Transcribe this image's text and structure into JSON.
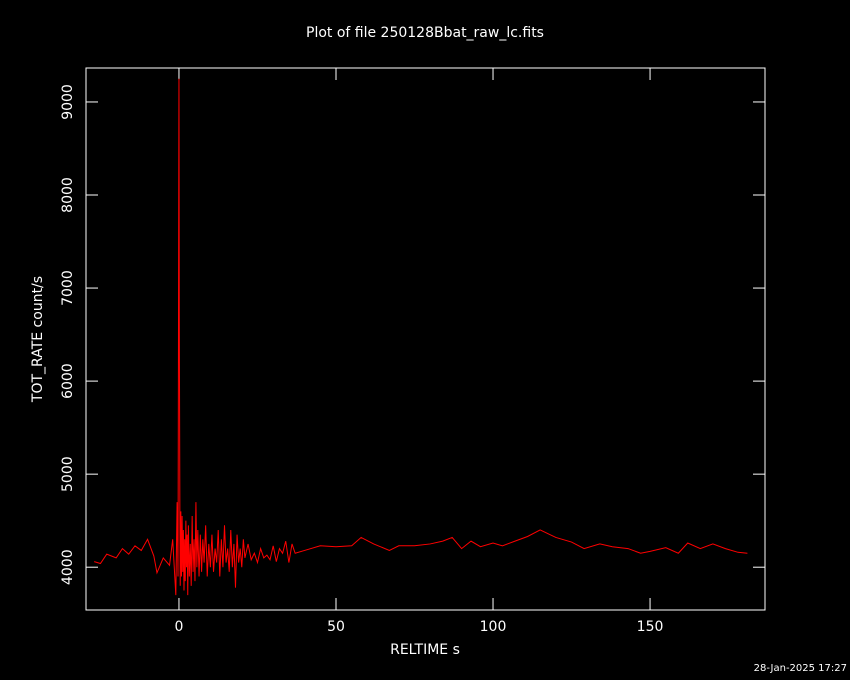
{
  "chart_data": {
    "type": "line",
    "title": "Plot of file 250128Bbat_raw_lc.fits",
    "x_label": "RELTIME  s",
    "y_label": "TOT_RATE  count/s",
    "timestamp": "28-Jan-2025 17:27",
    "background": "#000000",
    "axis_color": "#ffffff",
    "xlim": [
      -29.6,
      186.6
    ],
    "ylim": [
      3540,
      9365
    ],
    "xticks": [
      0,
      50,
      100,
      150
    ],
    "yticks": [
      4000,
      5000,
      6000,
      7000,
      8000,
      9000
    ],
    "x": [
      -27,
      -25,
      -23,
      -20,
      -18,
      -16,
      -14,
      -12,
      -10,
      -8,
      -7,
      -5,
      -3,
      -2,
      -1,
      -0.6,
      -0.3,
      0,
      0.1,
      0.2,
      0.3,
      0.4,
      0.6,
      0.8,
      1.0,
      1.2,
      1.4,
      1.6,
      1.8,
      2.0,
      2.2,
      2.4,
      2.6,
      2.8,
      3.0,
      3.3,
      3.6,
      3.9,
      4.2,
      4.5,
      4.8,
      5.1,
      5.4,
      5.7,
      6.0,
      6.4,
      6.8,
      7.2,
      7.6,
      8.0,
      8.5,
      9.0,
      9.5,
      10,
      10.5,
      11,
      11.5,
      12,
      12.5,
      13,
      13.5,
      14,
      14.5,
      15,
      15.5,
      16,
      16.5,
      17,
      17.5,
      18,
      18.5,
      19,
      19.5,
      20,
      20.5,
      21,
      22,
      23,
      24,
      25,
      26,
      27,
      28,
      29,
      30,
      31,
      32,
      33,
      34,
      35,
      36,
      37,
      40,
      45,
      50,
      55,
      58,
      62,
      67,
      70,
      75,
      80,
      84,
      87,
      90,
      93,
      96,
      100,
      103,
      107,
      111,
      115,
      120,
      125,
      129,
      134,
      138,
      143,
      147,
      150,
      155,
      159,
      162,
      166,
      170,
      174,
      178,
      181
    ],
    "series": [
      {
        "color": "#ff0000",
        "values": [
          4060,
          4040,
          4140,
          4100,
          4200,
          4140,
          4230,
          4180,
          4300,
          4120,
          3940,
          4100,
          4020,
          4300,
          3700,
          4700,
          3900,
          9250,
          6750,
          5650,
          4500,
          3800,
          4600,
          3900,
          4550,
          3950,
          4400,
          3750,
          4300,
          3850,
          4500,
          4000,
          4350,
          3700,
          4450,
          3900,
          4250,
          3800,
          4550,
          3950,
          4300,
          3850,
          4700,
          4000,
          4400,
          3900,
          4350,
          3950,
          4300,
          4050,
          4450,
          3900,
          4250,
          4000,
          4350,
          3950,
          4200,
          4050,
          4400,
          3900,
          4300,
          4000,
          4450,
          4050,
          4200,
          3950,
          4400,
          4000,
          4250,
          3780,
          4350,
          4050,
          4200,
          4000,
          4300,
          4100,
          4250,
          4080,
          4150,
          4050,
          4200,
          4100,
          4130,
          4080,
          4230,
          4060,
          4200,
          4150,
          4280,
          4050,
          4250,
          4150,
          4180,
          4230,
          4220,
          4230,
          4320,
          4250,
          4180,
          4230,
          4230,
          4250,
          4280,
          4320,
          4200,
          4280,
          4220,
          4260,
          4230,
          4280,
          4330,
          4400,
          4320,
          4270,
          4200,
          4250,
          4220,
          4200,
          4150,
          4170,
          4210,
          4150,
          4260,
          4200,
          4250,
          4200,
          4160,
          4150
        ]
      }
    ]
  }
}
